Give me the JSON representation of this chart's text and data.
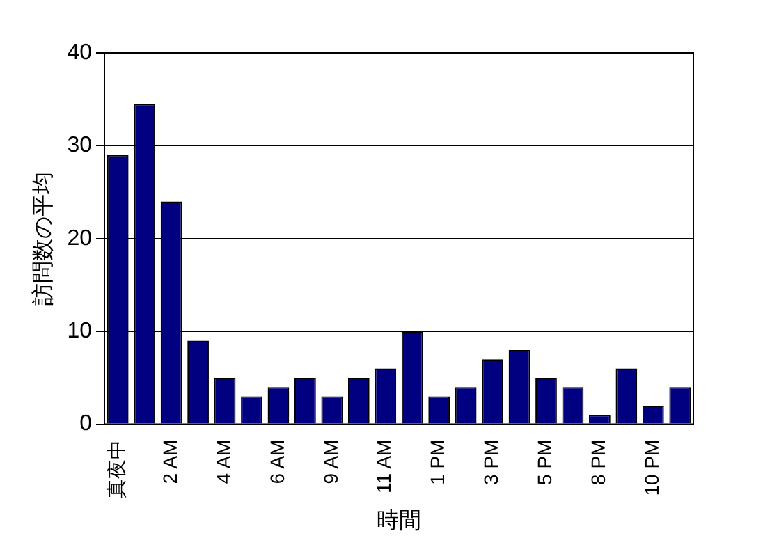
{
  "chart_data": {
    "type": "bar",
    "xlabel": "時間",
    "ylabel": "訪問数の平均",
    "categories": [
      "真夜中",
      null,
      "2 AM",
      null,
      "4 AM",
      null,
      "6 AM",
      null,
      "9 AM",
      null,
      "11 AM",
      null,
      "1 PM",
      null,
      "3 PM",
      null,
      "5 PM",
      null,
      "8 PM",
      null,
      "10 PM",
      null
    ],
    "values": [
      29,
      34.5,
      24,
      9,
      5,
      3,
      4,
      5,
      3,
      5,
      6,
      10,
      3,
      4,
      7,
      8,
      5,
      4,
      1,
      6,
      2,
      4
    ],
    "color": "#000080",
    "ylim": [
      0,
      40
    ],
    "yticks": [
      0,
      10,
      20,
      30,
      40
    ],
    "grid": "y"
  }
}
